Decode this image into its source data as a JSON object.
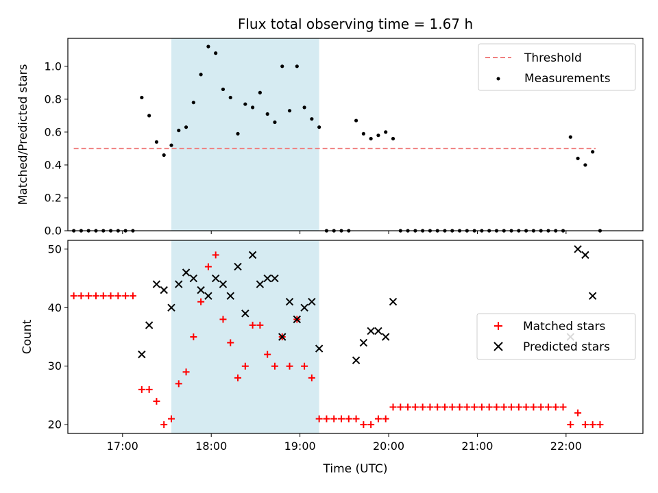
{
  "chart_data": [
    {
      "type": "scatter",
      "title": "Flux total observing time = 1.67 h",
      "ylabel": "Matched/Predicted stars",
      "xlabel": "",
      "ylim": [
        0,
        1.17
      ],
      "yticks": [
        "0.0",
        "0.2",
        "0.4",
        "0.6",
        "0.8",
        "1.0"
      ],
      "x_range": [
        "16:23",
        "22:52"
      ],
      "shaded_span": [
        "17:33",
        "19:13"
      ],
      "grid": false,
      "legend": "top-right",
      "threshold": {
        "name": "Threshold",
        "value": 0.5,
        "x_from": "16:27",
        "x_to": "22:20",
        "style": "dashed",
        "color": "#f08080"
      },
      "series": [
        {
          "name": "Measurements",
          "color": "#000000",
          "marker": "dot",
          "points": [
            [
              "16:27",
              0.0
            ],
            [
              "16:32",
              0.0
            ],
            [
              "16:37",
              0.0
            ],
            [
              "16:42",
              0.0
            ],
            [
              "16:47",
              0.0
            ],
            [
              "16:52",
              0.0
            ],
            [
              "16:57",
              0.0
            ],
            [
              "17:02",
              0.0
            ],
            [
              "17:07",
              0.0
            ],
            [
              "17:13",
              0.81
            ],
            [
              "17:18",
              0.7
            ],
            [
              "17:23",
              0.54
            ],
            [
              "17:28",
              0.46
            ],
            [
              "17:33",
              0.52
            ],
            [
              "17:38",
              0.61
            ],
            [
              "17:43",
              0.63
            ],
            [
              "17:48",
              0.78
            ],
            [
              "17:53",
              0.95
            ],
            [
              "17:58",
              1.12
            ],
            [
              "18:03",
              1.08
            ],
            [
              "18:08",
              0.86
            ],
            [
              "18:13",
              0.81
            ],
            [
              "18:18",
              0.59
            ],
            [
              "18:23",
              0.77
            ],
            [
              "18:28",
              0.75
            ],
            [
              "18:33",
              0.84
            ],
            [
              "18:38",
              0.71
            ],
            [
              "18:43",
              0.66
            ],
            [
              "18:48",
              1.0
            ],
            [
              "18:53",
              0.73
            ],
            [
              "18:58",
              1.0
            ],
            [
              "19:03",
              0.75
            ],
            [
              "19:08",
              0.68
            ],
            [
              "19:13",
              0.63
            ],
            [
              "19:18",
              0.0
            ],
            [
              "19:23",
              0.0
            ],
            [
              "19:28",
              0.0
            ],
            [
              "19:33",
              0.0
            ],
            [
              "19:38",
              0.67
            ],
            [
              "19:43",
              0.59
            ],
            [
              "19:48",
              0.56
            ],
            [
              "19:53",
              0.58
            ],
            [
              "19:58",
              0.6
            ],
            [
              "20:03",
              0.56
            ],
            [
              "20:08",
              0.0
            ],
            [
              "20:13",
              0.0
            ],
            [
              "20:18",
              0.0
            ],
            [
              "20:23",
              0.0
            ],
            [
              "20:28",
              0.0
            ],
            [
              "20:33",
              0.0
            ],
            [
              "20:38",
              0.0
            ],
            [
              "20:43",
              0.0
            ],
            [
              "20:48",
              0.0
            ],
            [
              "20:53",
              0.0
            ],
            [
              "20:58",
              0.0
            ],
            [
              "21:03",
              0.0
            ],
            [
              "21:08",
              0.0
            ],
            [
              "21:13",
              0.0
            ],
            [
              "21:18",
              0.0
            ],
            [
              "21:23",
              0.0
            ],
            [
              "21:28",
              0.0
            ],
            [
              "21:33",
              0.0
            ],
            [
              "21:38",
              0.0
            ],
            [
              "21:43",
              0.0
            ],
            [
              "21:48",
              0.0
            ],
            [
              "21:53",
              0.0
            ],
            [
              "21:58",
              0.0
            ],
            [
              "22:03",
              0.57
            ],
            [
              "22:08",
              0.44
            ],
            [
              "22:13",
              0.4
            ],
            [
              "22:18",
              0.48
            ],
            [
              "22:23",
              0.0
            ]
          ]
        }
      ]
    },
    {
      "type": "scatter",
      "title": "",
      "ylabel": "Count",
      "xlabel": "Time (UTC)",
      "ylim": [
        18.5,
        51.5
      ],
      "yticks": [
        "20",
        "30",
        "40",
        "50"
      ],
      "xticks": [
        "17:00",
        "18:00",
        "19:00",
        "20:00",
        "21:00",
        "22:00"
      ],
      "x_range": [
        "16:23",
        "22:52"
      ],
      "shaded_span": [
        "17:33",
        "19:13"
      ],
      "grid": false,
      "legend": "center-right",
      "series": [
        {
          "name": "Matched stars",
          "color": "#ff0000",
          "marker": "plus",
          "points": [
            [
              "16:27",
              42
            ],
            [
              "16:32",
              42
            ],
            [
              "16:37",
              42
            ],
            [
              "16:42",
              42
            ],
            [
              "16:47",
              42
            ],
            [
              "16:52",
              42
            ],
            [
              "16:57",
              42
            ],
            [
              "17:02",
              42
            ],
            [
              "17:07",
              42
            ],
            [
              "17:13",
              26
            ],
            [
              "17:18",
              26
            ],
            [
              "17:23",
              24
            ],
            [
              "17:28",
              20
            ],
            [
              "17:33",
              21
            ],
            [
              "17:38",
              27
            ],
            [
              "17:43",
              29
            ],
            [
              "17:48",
              35
            ],
            [
              "17:53",
              41
            ],
            [
              "17:58",
              47
            ],
            [
              "18:03",
              49
            ],
            [
              "18:08",
              38
            ],
            [
              "18:13",
              34
            ],
            [
              "18:18",
              28
            ],
            [
              "18:23",
              30
            ],
            [
              "18:28",
              37
            ],
            [
              "18:33",
              37
            ],
            [
              "18:38",
              32
            ],
            [
              "18:43",
              30
            ],
            [
              "18:48",
              35
            ],
            [
              "18:53",
              30
            ],
            [
              "18:58",
              38
            ],
            [
              "19:03",
              30
            ],
            [
              "19:08",
              28
            ],
            [
              "19:13",
              21
            ],
            [
              "19:18",
              21
            ],
            [
              "19:23",
              21
            ],
            [
              "19:28",
              21
            ],
            [
              "19:33",
              21
            ],
            [
              "19:38",
              21
            ],
            [
              "19:43",
              20
            ],
            [
              "19:48",
              20
            ],
            [
              "19:53",
              21
            ],
            [
              "19:58",
              21
            ],
            [
              "20:03",
              23
            ],
            [
              "20:08",
              23
            ],
            [
              "20:13",
              23
            ],
            [
              "20:18",
              23
            ],
            [
              "20:23",
              23
            ],
            [
              "20:28",
              23
            ],
            [
              "20:33",
              23
            ],
            [
              "20:38",
              23
            ],
            [
              "20:43",
              23
            ],
            [
              "20:48",
              23
            ],
            [
              "20:53",
              23
            ],
            [
              "20:58",
              23
            ],
            [
              "21:03",
              23
            ],
            [
              "21:08",
              23
            ],
            [
              "21:13",
              23
            ],
            [
              "21:18",
              23
            ],
            [
              "21:23",
              23
            ],
            [
              "21:28",
              23
            ],
            [
              "21:33",
              23
            ],
            [
              "21:38",
              23
            ],
            [
              "21:43",
              23
            ],
            [
              "21:48",
              23
            ],
            [
              "21:53",
              23
            ],
            [
              "21:58",
              23
            ],
            [
              "22:03",
              20
            ],
            [
              "22:08",
              22
            ],
            [
              "22:13",
              20
            ],
            [
              "22:18",
              20
            ],
            [
              "22:23",
              20
            ]
          ]
        },
        {
          "name": "Predicted stars",
          "color": "#000000",
          "marker": "x",
          "points": [
            [
              "17:13",
              32
            ],
            [
              "17:18",
              37
            ],
            [
              "17:23",
              44
            ],
            [
              "17:28",
              43
            ],
            [
              "17:33",
              40
            ],
            [
              "17:38",
              44
            ],
            [
              "17:43",
              46
            ],
            [
              "17:48",
              45
            ],
            [
              "17:53",
              43
            ],
            [
              "17:58",
              42
            ],
            [
              "18:03",
              45
            ],
            [
              "18:08",
              44
            ],
            [
              "18:13",
              42
            ],
            [
              "18:18",
              47
            ],
            [
              "18:23",
              39
            ],
            [
              "18:28",
              49
            ],
            [
              "18:33",
              44
            ],
            [
              "18:38",
              45
            ],
            [
              "18:43",
              45
            ],
            [
              "18:48",
              35
            ],
            [
              "18:53",
              41
            ],
            [
              "18:58",
              38
            ],
            [
              "19:03",
              40
            ],
            [
              "19:08",
              41
            ],
            [
              "19:13",
              33
            ],
            [
              "19:38",
              31
            ],
            [
              "19:43",
              34
            ],
            [
              "19:48",
              36
            ],
            [
              "19:53",
              36
            ],
            [
              "19:58",
              35
            ],
            [
              "20:03",
              41
            ],
            [
              "22:03",
              35
            ],
            [
              "22:08",
              50
            ],
            [
              "22:13",
              49
            ],
            [
              "22:18",
              42
            ]
          ]
        }
      ]
    }
  ]
}
